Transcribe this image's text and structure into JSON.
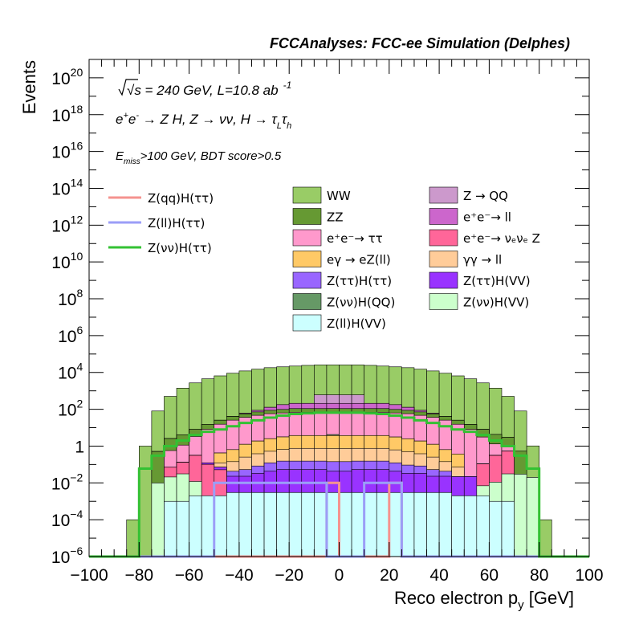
{
  "header": {
    "title": "FCCAnalyses: FCC-ee Simulation (Delphes)"
  },
  "annotations": {
    "energy": "√s = 240 GeV, L=10.8 ab",
    "energy_exp": "-1",
    "process": "e⁺e⁻ → Z H, Z → νν, H → τ_L τ_h",
    "selection": "E_miss>100 GeV, BDT score>0.5"
  },
  "chart_data": {
    "type": "area",
    "title": "FCCAnalyses: FCC-ee Simulation (Delphes)",
    "xlabel": "Reco electron p_y [GeV]",
    "ylabel": "Events",
    "xlim": [
      -100,
      100
    ],
    "ylim": [
      1e-06,
      1e+21
    ],
    "yscale": "log",
    "x_ticks": [
      -100,
      -80,
      -60,
      -40,
      -20,
      0,
      20,
      40,
      60,
      80,
      100
    ],
    "x_tick_labels": [
      "−100",
      "−80",
      "−60",
      "−40",
      "−20",
      "0",
      "20",
      "40",
      "60",
      "80",
      "100"
    ],
    "y_ticks": [
      1e-06,
      0.0001,
      0.01,
      1,
      100.0,
      10000.0,
      1000000.0,
      100000000.0,
      10000000000.0,
      1000000000000.0,
      100000000000000.0,
      1e+16,
      1e+18,
      1e+20
    ],
    "y_tick_labels": [
      {
        "base": "10",
        "exp": "−6"
      },
      {
        "base": "10",
        "exp": "−4"
      },
      {
        "base": "10",
        "exp": "−2"
      },
      {
        "base": "1",
        "exp": ""
      },
      {
        "base": "10",
        "exp": "2"
      },
      {
        "base": "10",
        "exp": "4"
      },
      {
        "base": "10",
        "exp": "6"
      },
      {
        "base": "10",
        "exp": "8"
      },
      {
        "base": "10",
        "exp": "10"
      },
      {
        "base": "10",
        "exp": "12"
      },
      {
        "base": "10",
        "exp": "14"
      },
      {
        "base": "10",
        "exp": "16"
      },
      {
        "base": "10",
        "exp": "18"
      },
      {
        "base": "10",
        "exp": "20"
      }
    ],
    "legend_signal": [
      {
        "label": "Z(qq)H(ττ)",
        "color": "#f5938f"
      },
      {
        "label": "Z(ll)H(ττ)",
        "color": "#9b9ef7"
      },
      {
        "label": "Z(νν)H(ττ)",
        "color": "#33c133"
      }
    ],
    "legend_background_col1": [
      {
        "label": "WW",
        "color": "#99cc66"
      },
      {
        "label": "ZZ",
        "color": "#669933"
      },
      {
        "label": "e⁺e⁻→ ττ",
        "color": "#ff99cc"
      },
      {
        "label": "eγ → eZ(ll)",
        "color": "#ffc966"
      },
      {
        "label": "Z(ττ)H(ττ)",
        "color": "#9966ff"
      },
      {
        "label": "Z(νν)H(QQ)",
        "color": "#669966"
      },
      {
        "label": "Z(ll)H(VV)",
        "color": "#ccffff"
      }
    ],
    "legend_background_col2": [
      {
        "label": "Z → QQ",
        "color": "#cc99cc"
      },
      {
        "label": "e⁺e⁻→ ll",
        "color": "#cc66cc"
      },
      {
        "label": "e⁺e⁻→ νₑνₑ Z",
        "color": "#ff6699"
      },
      {
        "label": "γγ → ll",
        "color": "#ffcc99"
      },
      {
        "label": "Z(ττ)H(VV)",
        "color": "#9933ff"
      },
      {
        "label": "Z(νν)H(VV)",
        "color": "#ccffcc"
      }
    ],
    "bin_edges": [
      -100,
      -95,
      -90,
      -85,
      -80,
      -75,
      -70,
      -65,
      -60,
      -55,
      -50,
      -45,
      -40,
      -35,
      -30,
      -25,
      -20,
      -15,
      -10,
      -5,
      0,
      5,
      10,
      15,
      20,
      25,
      30,
      35,
      40,
      45,
      50,
      55,
      60,
      65,
      70,
      75,
      80,
      85,
      90,
      95,
      100
    ],
    "stack_series": [
      {
        "name": "Z(ll)H(VV)",
        "color": "#ccffff",
        "values": [
          0,
          0,
          0,
          0,
          0,
          0,
          0.001,
          0.001,
          0.002,
          0.002,
          0.002,
          0.003,
          0.003,
          0.003,
          0.003,
          0.003,
          0.003,
          0.003,
          0.003,
          0.003,
          0.003,
          0.003,
          0.003,
          0.003,
          0.003,
          0.003,
          0.003,
          0.003,
          0.003,
          0.002,
          0.002,
          0.002,
          0.001,
          0.001,
          0,
          0,
          0,
          0,
          0,
          0
        ]
      },
      {
        "name": "Z(νν)H(VV)",
        "color": "#ccffcc",
        "values": [
          0,
          0,
          0,
          0,
          0,
          0.01,
          0.02,
          0.03,
          0.01,
          0,
          0,
          0,
          0,
          0,
          0,
          0,
          0,
          0,
          0,
          0,
          0,
          0,
          0,
          0,
          0,
          0,
          0,
          0,
          0,
          0,
          0,
          0.005,
          0.01,
          0.03,
          0.03,
          0.02,
          0,
          0,
          0,
          0
        ]
      },
      {
        "name": "e⁺e⁻→ νₑνₑ Z",
        "color": "#ff6699",
        "values": [
          0,
          0,
          0,
          0,
          0,
          0,
          0.05,
          0.1,
          0.3,
          0.1,
          0.05,
          0,
          0,
          0,
          0,
          0,
          0,
          0,
          0,
          0,
          0,
          0,
          0,
          0,
          0,
          0,
          0,
          0,
          0,
          0,
          0,
          0.1,
          0.3,
          0.5,
          0,
          0,
          0,
          0,
          0,
          0
        ]
      },
      {
        "name": "Z(ττ)H(VV)",
        "color": "#9933ff",
        "values": [
          0,
          0,
          0,
          0,
          0,
          0,
          0,
          0,
          0,
          0.02,
          0.02,
          0.02,
          0.02,
          0.03,
          0.04,
          0.05,
          0.05,
          0.05,
          0.05,
          0.04,
          0.04,
          0.05,
          0.05,
          0.05,
          0.04,
          0.03,
          0.03,
          0.02,
          0.02,
          0.02,
          0.02,
          0,
          0,
          0,
          0,
          0,
          0,
          0,
          0,
          0
        ]
      },
      {
        "name": "Z(ττ)H(ττ)",
        "color": "#9966ff",
        "values": [
          0,
          0,
          0,
          0,
          0,
          0,
          0,
          0,
          0,
          0,
          0,
          0.02,
          0.03,
          0.05,
          0.08,
          0.1,
          0.1,
          0.1,
          0.1,
          0.1,
          0.1,
          0.1,
          0.1,
          0.1,
          0.08,
          0.06,
          0.05,
          0.03,
          0.02,
          0,
          0,
          0,
          0,
          0,
          0,
          0,
          0,
          0,
          0,
          0
        ]
      },
      {
        "name": "γγ → ll",
        "color": "#ffcc99",
        "values": [
          0,
          0,
          0,
          0,
          0,
          0,
          0,
          0,
          0,
          0,
          0.05,
          0.1,
          0.2,
          0.3,
          0.4,
          0.5,
          0.6,
          0.6,
          0.6,
          0.6,
          0.6,
          0.6,
          0.6,
          0.6,
          0.5,
          0.4,
          0.3,
          0.2,
          0.1,
          0.05,
          0,
          0,
          0,
          0,
          0,
          0,
          0,
          0,
          0,
          0
        ]
      },
      {
        "name": "eγ → eZ(ll)",
        "color": "#ffc966",
        "values": [
          0,
          0,
          0,
          0,
          0,
          0,
          0,
          0,
          0,
          0,
          0.3,
          0.5,
          1,
          1.5,
          2,
          2.5,
          3,
          3,
          3,
          3,
          3,
          3,
          3,
          3,
          2.5,
          2,
          1.5,
          1,
          0.5,
          0.3,
          0,
          0,
          0,
          0,
          0,
          0,
          0,
          0,
          0,
          0
        ]
      },
      {
        "name": "Z(νν)H(QQ)",
        "color": "#669966",
        "values": [
          0,
          0,
          0,
          0,
          0,
          0,
          0,
          0,
          0,
          0,
          0,
          0,
          0,
          0,
          0,
          0,
          0,
          0,
          0,
          0.5,
          0,
          0,
          0,
          0,
          0,
          0,
          0,
          0,
          0,
          0,
          0,
          0,
          0,
          0,
          0,
          0,
          0,
          0,
          0,
          0
        ]
      },
      {
        "name": "e⁺e⁻→ ττ",
        "color": "#ff99cc",
        "values": [
          0,
          0,
          0,
          0,
          0,
          0,
          0.5,
          1,
          3,
          8,
          15,
          25,
          35,
          45,
          55,
          60,
          65,
          65,
          65,
          65,
          65,
          65,
          65,
          65,
          60,
          55,
          45,
          35,
          25,
          15,
          8,
          3,
          1,
          0.5,
          0,
          0,
          0,
          0,
          0,
          0
        ]
      },
      {
        "name": "ZZ",
        "color": "#669933",
        "values": [
          0,
          0,
          0,
          0,
          0,
          0.5,
          2,
          3,
          5,
          7,
          10,
          15,
          20,
          25,
          30,
          35,
          40,
          40,
          40,
          40,
          40,
          40,
          40,
          40,
          35,
          30,
          25,
          20,
          15,
          10,
          7,
          5,
          3,
          2,
          0.5,
          0,
          0,
          0,
          0,
          0
        ]
      },
      {
        "name": "e⁺e⁻→ ll",
        "color": "#cc66cc",
        "values": [
          0,
          0,
          0,
          0,
          0,
          0,
          0,
          0,
          0,
          0,
          0,
          0,
          5,
          15,
          40,
          80,
          100,
          100,
          100,
          100,
          100,
          100,
          100,
          100,
          80,
          40,
          15,
          5,
          0,
          0,
          0,
          0,
          0,
          0,
          0,
          0,
          0,
          0,
          0,
          0
        ]
      },
      {
        "name": "Z → QQ",
        "color": "#cc99cc",
        "values": [
          0,
          0,
          0,
          0,
          0,
          0,
          0,
          0,
          0,
          0,
          0,
          0,
          0,
          0,
          0,
          0,
          0,
          0,
          400,
          400,
          400,
          400,
          0,
          0,
          0,
          0,
          0,
          0,
          0,
          0,
          0,
          0,
          0,
          0,
          0,
          0,
          0,
          0,
          0,
          0
        ]
      },
      {
        "name": "WW",
        "color": "#99cc66",
        "values": [
          0,
          0,
          0,
          0.0001,
          1,
          80,
          500,
          1400,
          2700,
          4500,
          6500,
          9000,
          12000,
          15000,
          18000,
          20000,
          22000,
          24000,
          25000,
          25000,
          25000,
          25000,
          24000,
          22000,
          20000,
          18000,
          15000,
          12000,
          9000,
          6500,
          4500,
          2700,
          1400,
          500,
          80,
          1,
          0.0001,
          0,
          0,
          0
        ]
      }
    ],
    "signal_series": [
      {
        "name": "Z(qq)H(ττ)",
        "color": "#f5938f",
        "values": [
          0,
          0,
          0,
          0,
          0,
          0,
          0,
          0,
          0,
          0,
          0,
          0,
          0,
          0,
          0,
          0,
          0,
          0,
          0,
          0.01,
          0,
          0,
          0,
          0,
          0.01,
          0,
          0,
          0,
          0,
          0,
          0,
          0,
          0,
          0,
          0,
          0,
          0,
          0,
          0,
          0
        ]
      },
      {
        "name": "Z(ll)H(ττ)",
        "color": "#9b9ef7",
        "values": [
          0,
          0,
          0,
          0,
          0,
          0,
          0,
          0,
          0,
          0,
          0.01,
          0.01,
          0.01,
          0.01,
          0.01,
          0.01,
          0.01,
          0.01,
          0.01,
          0,
          0,
          0,
          0.01,
          0.01,
          0.01,
          0,
          0,
          0,
          0,
          0,
          0,
          0,
          0,
          0,
          0,
          0,
          0,
          0,
          0,
          0
        ]
      },
      {
        "name": "Z(νν)H(ττ)",
        "color": "#33c133",
        "values": [
          0,
          0,
          0,
          0,
          0.06,
          0.3,
          1,
          2,
          4,
          6,
          8,
          12,
          18,
          25,
          35,
          45,
          55,
          60,
          65,
          65,
          65,
          65,
          60,
          55,
          45,
          35,
          25,
          18,
          12,
          8,
          6,
          4,
          2,
          1,
          0.3,
          0.06,
          0,
          0,
          0,
          0
        ]
      }
    ]
  }
}
